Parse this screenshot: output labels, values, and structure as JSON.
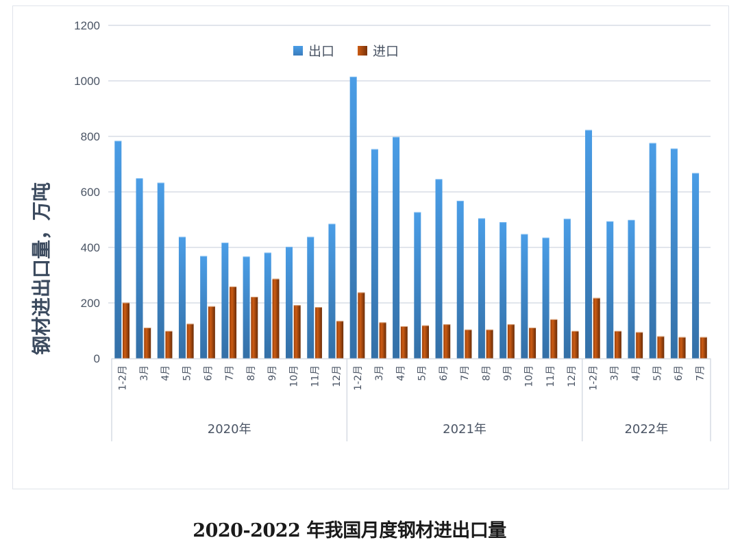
{
  "chart_data": {
    "type": "bar",
    "title": "2020-2022 年我国月度钢材进出口量",
    "xlabel": "",
    "ylabel": "钢材进出口量，万吨",
    "ylim": [
      0,
      1200
    ],
    "yticks": [
      0,
      200,
      400,
      600,
      800,
      1000,
      1200
    ],
    "grid": true,
    "legend_position": "top-center",
    "groups": [
      {
        "label": "2020年",
        "categories": [
          "1-2月",
          "3月",
          "4月",
          "5月",
          "6月",
          "7月",
          "8月",
          "9月",
          "10月",
          "11月",
          "12月"
        ]
      },
      {
        "label": "2021年",
        "categories": [
          "1-2月",
          "3月",
          "4月",
          "5月",
          "6月",
          "7月",
          "8月",
          "9月",
          "10月",
          "11月",
          "12月"
        ]
      },
      {
        "label": "2022年",
        "categories": [
          "1-2月",
          "3月",
          "4月",
          "5月",
          "6月",
          "7月"
        ]
      }
    ],
    "categories": [
      "2020年 1-2月",
      "2020年 3月",
      "2020年 4月",
      "2020年 5月",
      "2020年 6月",
      "2020年 7月",
      "2020年 8月",
      "2020年 9月",
      "2020年 10月",
      "2020年 11月",
      "2020年 12月",
      "2021年 1-2月",
      "2021年 3月",
      "2021年 4月",
      "2021年 5月",
      "2021年 6月",
      "2021年 7月",
      "2021年 8月",
      "2021年 9月",
      "2021年 10月",
      "2021年 11月",
      "2021年 12月",
      "2022年 1-2月",
      "2022年 3月",
      "2022年 4月",
      "2022年 5月",
      "2022年 6月",
      "2022年 7月"
    ],
    "series": [
      {
        "name": "出口",
        "color": "#4a9be3",
        "values": [
          784,
          649,
          633,
          438,
          369,
          417,
          367,
          381,
          402,
          438,
          485,
          1015,
          754,
          798,
          527,
          646,
          568,
          505,
          491,
          448,
          435,
          503,
          823,
          494,
          499,
          776,
          756,
          668
        ]
      },
      {
        "name": "进口",
        "color": "#b04f10",
        "values": [
          201,
          111,
          99,
          125,
          188,
          259,
          222,
          287,
          192,
          185,
          135,
          238,
          130,
          116,
          119,
          123,
          104,
          104,
          123,
          111,
          141,
          99,
          218,
          99,
          95,
          80,
          77,
          77
        ]
      }
    ]
  },
  "legend": {
    "export_label": "出口",
    "import_label": "进口"
  },
  "axis": {
    "ylabel": "钢材进出口量，万吨"
  },
  "caption": "2020-2022 年我国月度钢材进出口量"
}
